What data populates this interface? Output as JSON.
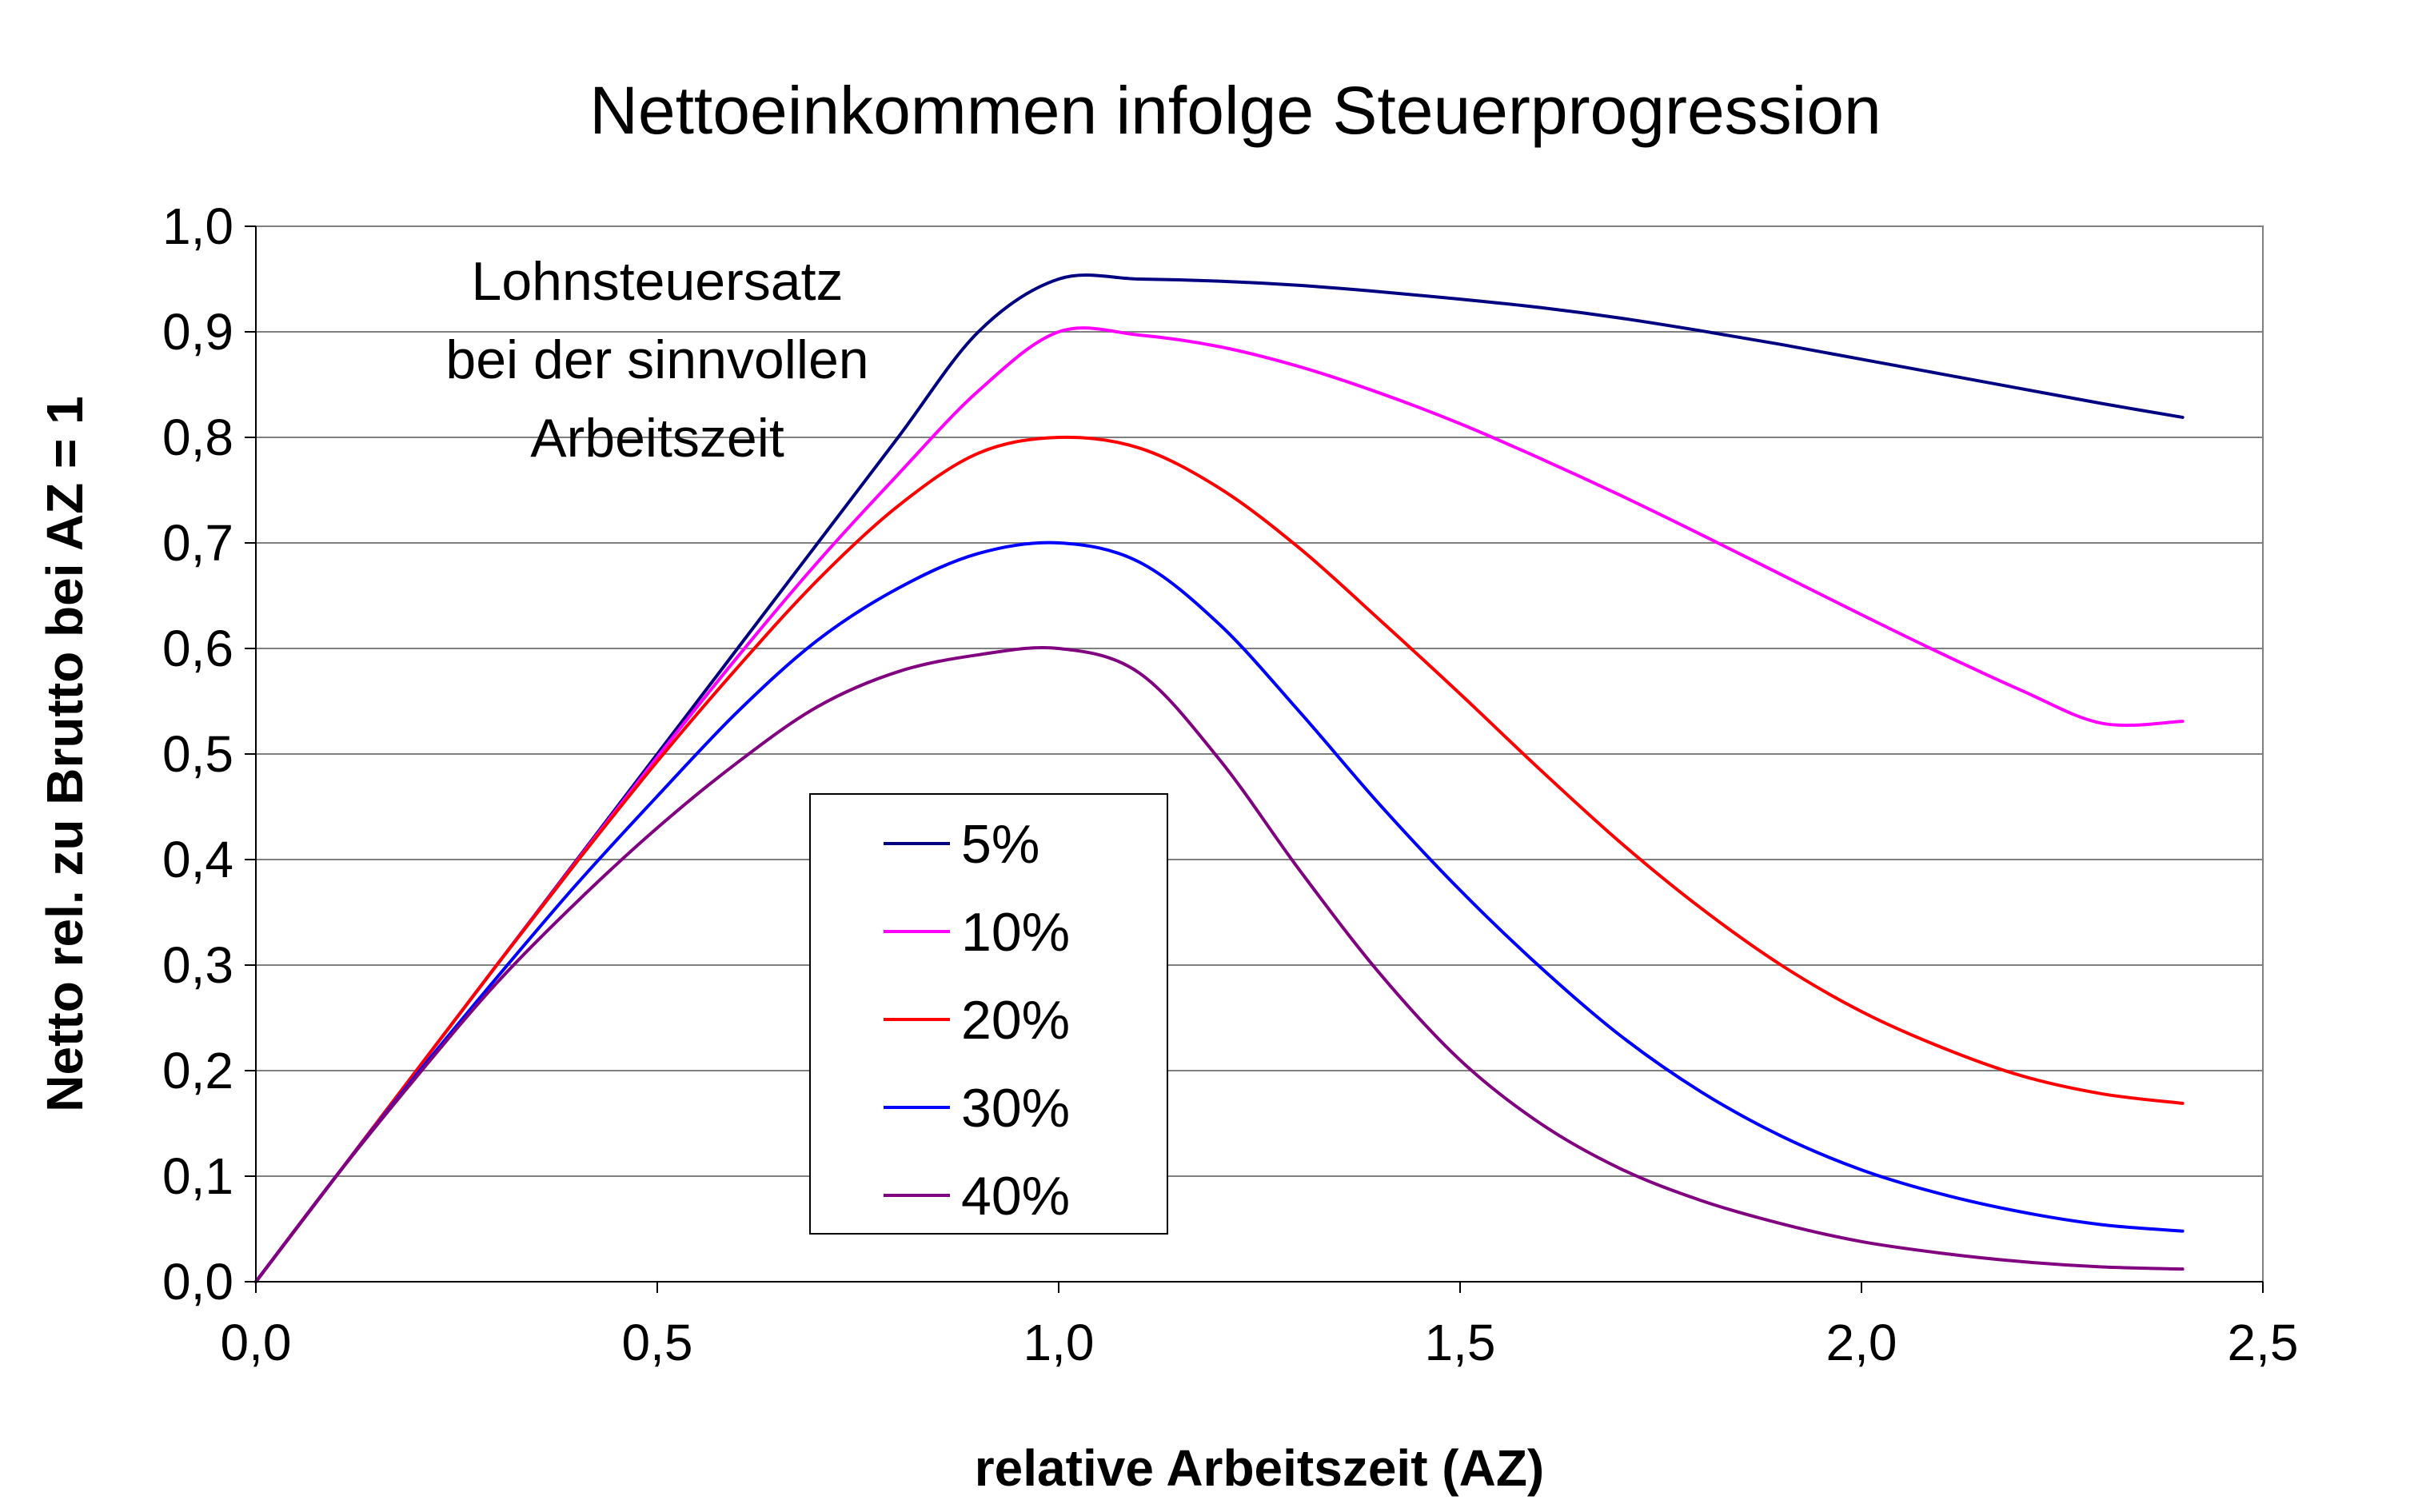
{
  "chart_data": {
    "type": "line",
    "title": "Nettoeinkommen infolge Steuerprogression",
    "xlabel": "relative Arbeitszeit (AZ)",
    "ylabel": "Netto rel. zu Brutto bei AZ = 1",
    "xlim": [
      0.0,
      2.5
    ],
    "ylim": [
      0.0,
      1.0
    ],
    "x_ticks": [
      "0,0",
      "0,5",
      "1,0",
      "1,5",
      "2,0",
      "2,5"
    ],
    "y_ticks": [
      "0,0",
      "0,1",
      "0,2",
      "0,3",
      "0,4",
      "0,5",
      "0,6",
      "0,7",
      "0,8",
      "0,9",
      "1,0"
    ],
    "grid": "horizontal",
    "legend_position": "center-left",
    "annotation": [
      "Lohnsteuersatz",
      "bei der sinnvollen",
      "Arbeitszeit"
    ],
    "series": [
      {
        "name": "5%",
        "color": "#000080",
        "x": [
          0,
          0.1,
          0.2,
          0.3,
          0.4,
          0.5,
          0.6,
          0.7,
          0.8,
          0.9,
          1.0,
          1.1,
          1.2,
          1.3,
          1.4,
          1.5,
          1.6,
          1.7,
          1.8,
          1.9,
          2.0,
          2.1,
          2.2,
          2.3,
          2.4
        ],
        "y": [
          0,
          0.1,
          0.2,
          0.3,
          0.4,
          0.5,
          0.6,
          0.7,
          0.8,
          0.9,
          0.95,
          0.95,
          0.948,
          0.944,
          0.938,
          0.931,
          0.923,
          0.913,
          0.901,
          0.888,
          0.874,
          0.86,
          0.846,
          0.832,
          0.819
        ]
      },
      {
        "name": "10%",
        "color": "#ff00ff",
        "x": [
          0,
          0.1,
          0.2,
          0.3,
          0.4,
          0.5,
          0.6,
          0.7,
          0.8,
          0.9,
          1.0,
          1.1,
          1.2,
          1.3,
          1.4,
          1.5,
          1.6,
          1.7,
          1.8,
          1.9,
          2.0,
          2.1,
          2.2,
          2.3,
          2.4
        ],
        "y": [
          0,
          0.1,
          0.2,
          0.3,
          0.399,
          0.497,
          0.592,
          0.682,
          0.765,
          0.844,
          0.9,
          0.897,
          0.886,
          0.867,
          0.842,
          0.813,
          0.78,
          0.745,
          0.708,
          0.67,
          0.632,
          0.595,
          0.56,
          0.529,
          0.531
        ]
      },
      {
        "name": "20%",
        "color": "#ff0000",
        "x": [
          0,
          0.1,
          0.2,
          0.3,
          0.4,
          0.5,
          0.6,
          0.7,
          0.8,
          0.9,
          1.0,
          1.1,
          1.2,
          1.3,
          1.4,
          1.5,
          1.6,
          1.7,
          1.8,
          1.9,
          2.0,
          2.1,
          2.2,
          2.3,
          2.4
        ],
        "y": [
          0,
          0.1,
          0.2,
          0.3,
          0.398,
          0.493,
          0.582,
          0.665,
          0.735,
          0.785,
          0.8,
          0.79,
          0.752,
          0.695,
          0.627,
          0.557,
          0.485,
          0.416,
          0.354,
          0.3,
          0.256,
          0.222,
          0.195,
          0.178,
          0.169
        ]
      },
      {
        "name": "30%",
        "color": "#0000ff",
        "x": [
          0,
          0.1,
          0.2,
          0.3,
          0.4,
          0.5,
          0.6,
          0.7,
          0.8,
          0.9,
          1.0,
          1.1,
          1.2,
          1.3,
          1.4,
          1.5,
          1.6,
          1.7,
          1.8,
          1.9,
          2.0,
          2.1,
          2.2,
          2.3,
          2.4
        ],
        "y": [
          0,
          0.1,
          0.196,
          0.288,
          0.377,
          0.46,
          0.54,
          0.608,
          0.657,
          0.69,
          0.7,
          0.682,
          0.623,
          0.54,
          0.452,
          0.371,
          0.298,
          0.233,
          0.18,
          0.138,
          0.106,
          0.083,
          0.066,
          0.054,
          0.048
        ]
      },
      {
        "name": "40%",
        "color": "#800080",
        "x": [
          0,
          0.1,
          0.2,
          0.3,
          0.4,
          0.5,
          0.6,
          0.7,
          0.8,
          0.9,
          1.0,
          1.1,
          1.2,
          1.3,
          1.4,
          1.5,
          1.6,
          1.7,
          1.8,
          1.9,
          2.0,
          2.1,
          2.2,
          2.3,
          2.4
        ],
        "y": [
          0,
          0.1,
          0.194,
          0.283,
          0.36,
          0.43,
          0.492,
          0.545,
          0.578,
          0.594,
          0.6,
          0.577,
          0.495,
          0.39,
          0.292,
          0.21,
          0.15,
          0.107,
          0.077,
          0.055,
          0.038,
          0.027,
          0.019,
          0.014,
          0.012
        ]
      }
    ]
  }
}
